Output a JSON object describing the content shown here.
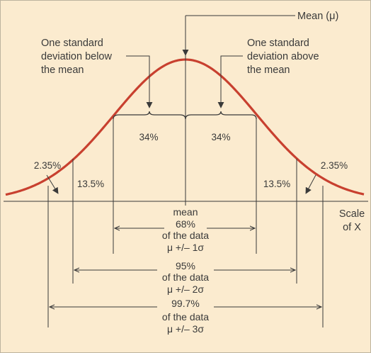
{
  "labels": {
    "mean_mu": "Mean (μ)",
    "below_1": "One standard",
    "below_2": "deviation below",
    "below_3": "the mean",
    "above_1": "One standard",
    "above_2": "deviation above",
    "above_3": "the mean",
    "pct_34_left": "34%",
    "pct_34_right": "34%",
    "pct_135_left": "13.5%",
    "pct_135_right": "13.5%",
    "pct_235_left": "2.35%",
    "pct_235_right": "2.35%",
    "scale_1": "Scale",
    "scale_2": "of X",
    "mean_word": "mean"
  },
  "ranges": [
    {
      "pct": "68%",
      "desc": "of the data",
      "formula": "μ +/– 1σ"
    },
    {
      "pct": "95%",
      "desc": "of the data",
      "formula": "μ +/– 2σ"
    },
    {
      "pct": "99.7%",
      "desc": "of the data",
      "formula": "μ +/– 3σ"
    }
  ],
  "colors": {
    "background": "#fbebcf",
    "curve": "#c8402f",
    "ink": "#3a3a3a"
  }
}
